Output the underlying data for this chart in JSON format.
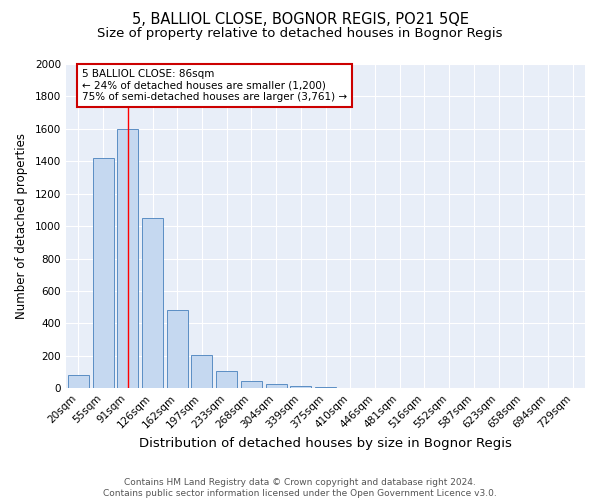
{
  "title1": "5, BALLIOL CLOSE, BOGNOR REGIS, PO21 5QE",
  "title2": "Size of property relative to detached houses in Bognor Regis",
  "xlabel": "Distribution of detached houses by size in Bognor Regis",
  "ylabel": "Number of detached properties",
  "categories": [
    "20sqm",
    "55sqm",
    "91sqm",
    "126sqm",
    "162sqm",
    "197sqm",
    "233sqm",
    "268sqm",
    "304sqm",
    "339sqm",
    "375sqm",
    "410sqm",
    "446sqm",
    "481sqm",
    "516sqm",
    "552sqm",
    "587sqm",
    "623sqm",
    "658sqm",
    "694sqm",
    "729sqm"
  ],
  "values": [
    80,
    1420,
    1600,
    1050,
    480,
    205,
    105,
    45,
    25,
    15,
    10,
    0,
    0,
    0,
    0,
    0,
    0,
    0,
    0,
    0,
    0
  ],
  "bar_color": "#c5d8f0",
  "bar_edge_color": "#5b8ec4",
  "fig_background": "#ffffff",
  "axes_background": "#e8eef8",
  "grid_color": "#ffffff",
  "red_line_x": 2,
  "annotation_text": "5 BALLIOL CLOSE: 86sqm\n← 24% of detached houses are smaller (1,200)\n75% of semi-detached houses are larger (3,761) →",
  "annotation_box_facecolor": "#ffffff",
  "annotation_box_edgecolor": "#cc0000",
  "ylim": [
    0,
    2000
  ],
  "yticks": [
    0,
    200,
    400,
    600,
    800,
    1000,
    1200,
    1400,
    1600,
    1800,
    2000
  ],
  "footnote": "Contains HM Land Registry data © Crown copyright and database right 2024.\nContains public sector information licensed under the Open Government Licence v3.0.",
  "title1_fontsize": 10.5,
  "title2_fontsize": 9.5,
  "xlabel_fontsize": 9.5,
  "ylabel_fontsize": 8.5,
  "tick_fontsize": 7.5,
  "annot_fontsize": 7.5,
  "footnote_fontsize": 6.5
}
